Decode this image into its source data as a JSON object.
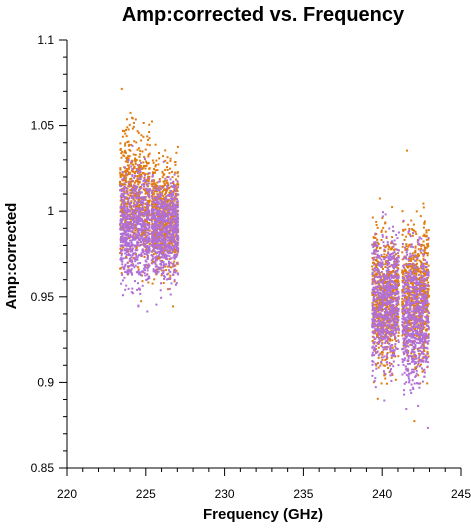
{
  "chart_data": {
    "type": "scatter",
    "title": "Amp:corrected vs. Frequency",
    "xlabel": "Frequency (GHz)",
    "ylabel": "Amp:corrected",
    "xlim": [
      220,
      245
    ],
    "ylim": [
      0.85,
      1.1
    ],
    "x_ticks": [
      220,
      225,
      230,
      235,
      240,
      245
    ],
    "x_tick_labels": [
      "220",
      "225",
      "230",
      "235",
      "240",
      "245"
    ],
    "y_ticks": [
      0.85,
      0.9,
      0.95,
      1.0,
      1.05,
      1.1
    ],
    "y_tick_labels": [
      "0.85",
      "0.9",
      "0.95",
      "1",
      "1.05",
      "1.1"
    ],
    "grid": false,
    "legend": "none",
    "series": [
      {
        "color": "#e07b10",
        "clusters": [
          {
            "x_range": [
              223.3,
              225.2
            ],
            "y_range": [
              0.955,
              1.06
            ],
            "y_outliers": [
              1.072,
              0.948
            ]
          },
          {
            "x_range": [
              225.3,
              227.0
            ],
            "y_range": [
              0.955,
              1.04
            ],
            "y_outliers": [
              1.053,
              0.945
            ]
          },
          {
            "x_range": [
              239.3,
              241.0
            ],
            "y_range": [
              0.895,
              1.003
            ],
            "y_outliers": [
              1.008,
              0.891
            ]
          },
          {
            "x_range": [
              241.2,
              242.9
            ],
            "y_range": [
              0.9,
              1.005
            ],
            "y_outliers": [
              1.036,
              0.878
            ]
          }
        ]
      },
      {
        "color": "#b06fd8",
        "clusters": [
          {
            "x_range": [
              223.3,
              225.2
            ],
            "y_range": [
              0.945,
              1.04
            ],
            "y_outliers": [
              0.942
            ]
          },
          {
            "x_range": [
              225.3,
              227.0
            ],
            "y_range": [
              0.95,
              1.03
            ],
            "y_outliers": [
              0.946
            ]
          },
          {
            "x_range": [
              239.3,
              241.0
            ],
            "y_range": [
              0.895,
              1.0
            ],
            "y_outliers": [
              0.89
            ]
          },
          {
            "x_range": [
              241.2,
              242.9
            ],
            "y_range": [
              0.885,
              0.995
            ],
            "y_outliers": [
              0.874
            ]
          }
        ]
      }
    ]
  }
}
